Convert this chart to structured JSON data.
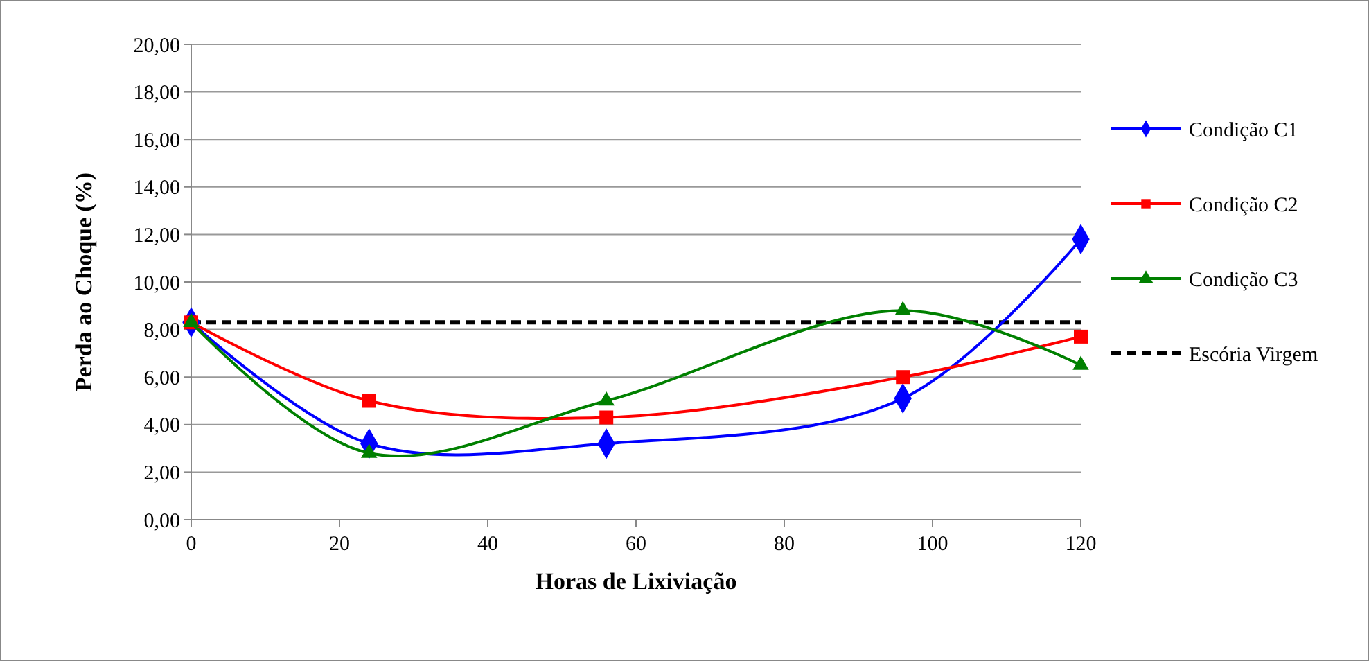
{
  "chart_data": {
    "type": "line",
    "xlabel": "Horas de Lixiviação",
    "ylabel": "Perda ao Choque (%)",
    "x": [
      0,
      24,
      56,
      96,
      120
    ],
    "series": [
      {
        "name": "Condição C1",
        "color": "#0000ff",
        "marker": "diamond",
        "values": [
          8.3,
          3.2,
          3.2,
          5.1,
          11.8
        ]
      },
      {
        "name": "Condição C2",
        "color": "#ff0000",
        "marker": "square",
        "values": [
          8.3,
          5.0,
          4.3,
          6.0,
          7.7
        ]
      },
      {
        "name": "Condição C3",
        "color": "#008000",
        "marker": "triangle",
        "values": [
          8.3,
          2.8,
          5.0,
          8.8,
          6.5
        ]
      }
    ],
    "ref_lines": [
      {
        "axis": "y",
        "value": 8.3,
        "label": "Escória Virgem",
        "color": "#000000",
        "line_style": "dashed"
      }
    ],
    "xlim": [
      0,
      120
    ],
    "xticks": [
      0,
      20,
      40,
      60,
      80,
      100,
      120
    ],
    "ylim": [
      0,
      20
    ],
    "yticks": [
      {
        "value": 0,
        "label": "0,00"
      },
      {
        "value": 2,
        "label": "2,00"
      },
      {
        "value": 4,
        "label": "4,00"
      },
      {
        "value": 6,
        "label": "6,00"
      },
      {
        "value": 8,
        "label": "8,00"
      },
      {
        "value": 10,
        "label": "10,00"
      },
      {
        "value": 12,
        "label": "12,00"
      },
      {
        "value": 14,
        "label": "14,00"
      },
      {
        "value": 16,
        "label": "16,00"
      },
      {
        "value": 18,
        "label": "18,00"
      },
      {
        "value": 20,
        "label": "20,00"
      }
    ],
    "grid": "y",
    "legend": "right"
  }
}
